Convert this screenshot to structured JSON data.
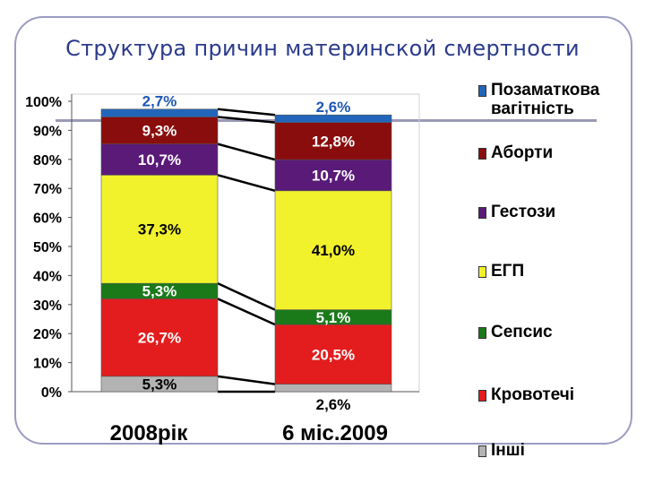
{
  "slide": {
    "title": "Структура причин материнской смертности"
  },
  "chart_data": {
    "type": "bar",
    "stacked": true,
    "normalized_percent": true,
    "categories": [
      "2008рік",
      "6 міс.2009"
    ],
    "ylim": [
      0,
      100
    ],
    "yticks": [
      "0%",
      "10%",
      "20%",
      "30%",
      "40%",
      "50%",
      "60%",
      "70%",
      "80%",
      "90%",
      "100%"
    ],
    "series": [
      {
        "name": "Інші",
        "values": [
          5.3,
          2.6
        ],
        "labels": [
          "5,3%",
          "2,6%"
        ],
        "color": "#b3b3b3"
      },
      {
        "name": "Кровотечі",
        "values": [
          26.7,
          20.5
        ],
        "labels": [
          "26,7%",
          "20,5%"
        ],
        "color": "#e31d1d"
      },
      {
        "name": "Сепсис",
        "values": [
          5.3,
          5.1
        ],
        "labels": [
          "5,3%",
          "5,1%"
        ],
        "color": "#1a7a1a"
      },
      {
        "name": "ЕГП",
        "values": [
          37.3,
          41.0
        ],
        "labels": [
          "37,3%",
          "41,0%"
        ],
        "color": "#f2f22c"
      },
      {
        "name": "Гестози",
        "values": [
          10.7,
          10.7
        ],
        "labels": [
          "10,7%",
          "10,7%"
        ],
        "color": "#5a1a78"
      },
      {
        "name": "Аборти",
        "values": [
          9.3,
          12.8
        ],
        "labels": [
          "9,3%",
          "12,8%"
        ],
        "color": "#8a0d0d"
      },
      {
        "name": "Позаматкова вагітність",
        "values": [
          2.7,
          2.6
        ],
        "labels": [
          "2,7%",
          "2,6%"
        ],
        "color": "#2266bb"
      }
    ],
    "legend_position": "right",
    "series_lines": true,
    "grid": false
  }
}
